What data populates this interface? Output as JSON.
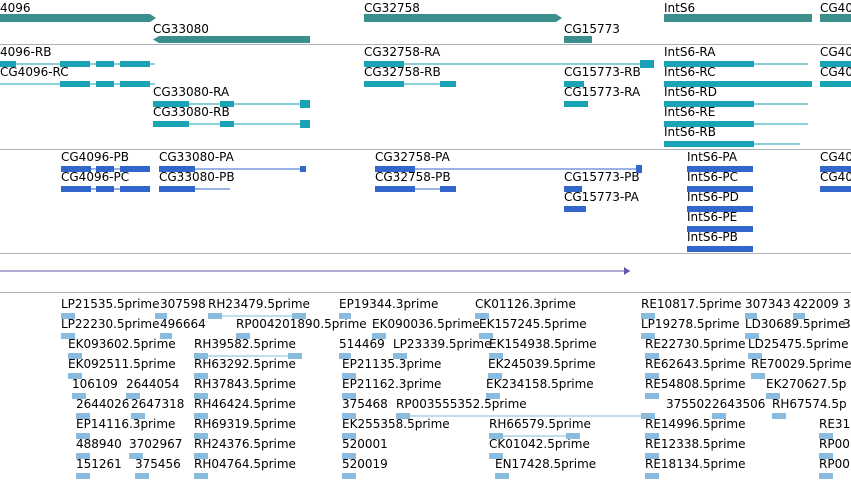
{
  "colors": {
    "gene": "#3a8f8c",
    "transcript": "#1aa3b5",
    "cds": "#3366cc",
    "sequence": "#6655aa",
    "est": "#88bbdd",
    "separator": "#aab3bb"
  },
  "genes": [
    "4096",
    "CG32758",
    "IntS6",
    "CG40",
    "CG33080",
    "CG15773"
  ],
  "transcripts": [
    "4096-RB",
    "CG32758-RA",
    "IntS6-RA",
    "CG40",
    "CG4096-RC",
    "CG32758-RB",
    "CG15773-RB",
    "IntS6-RC",
    "CG40",
    "CG33080-RA",
    "CG15773-RA",
    "IntS6-RD",
    "CG33080-RB",
    "IntS6-RE",
    "IntS6-RB"
  ],
  "proteins": [
    "CG4096-PB",
    "CG33080-PA",
    "CG32758-PA",
    "IntS6-PA",
    "CG40",
    "CG4096-PC",
    "CG33080-PB",
    "CG32758-PB",
    "CG15773-PB",
    "IntS6-PC",
    "CG40",
    "CG15773-PA",
    "IntS6-PD",
    "IntS6-PE",
    "IntS6-PB"
  ],
  "ests": [
    "LP21535.5prime",
    "307598",
    "RH23479.5prime",
    "EP19344.3prime",
    "CK01126.3prime",
    "RE10817.5prime",
    "307343",
    "422009",
    "3",
    "LP22230.5prime",
    "496664",
    "RP004201890.5prime",
    "EK090036.5prime",
    "EK157245.5prime",
    "LP19278.5prime",
    "LD30689.5prime",
    "3",
    "EK093602.5prime",
    "RH39582.5prime",
    "514469",
    "LP23339.5prime",
    "EK154938.5prime",
    "RE22730.5prime",
    "LD25475.5prime",
    "EK092511.5prime",
    "RH63292.5prime",
    "EP21135.3prime",
    "EK245039.5prime",
    "RE62643.5prime",
    "RE70029.5prime",
    "106109",
    "2644054",
    "RH37843.5prime",
    "EP21162.3prime",
    "EK234158.5prime",
    "RE54808.5prime",
    "EK270627.5p",
    "2644026",
    "2647318",
    "RH46424.5prime",
    "375468",
    "RP003555352.5prime",
    "375502",
    "2643506",
    "RH67574.5p",
    "EP14116.3prime",
    "RH69319.5prime",
    "EK255358.5prime",
    "RH66579.5prime",
    "RE14996.5prime",
    "RE31",
    "488940",
    "3702967",
    "RH24376.5prime",
    "520001",
    "CK01042.5prime",
    "RE12338.5prime",
    "RP00",
    "151261",
    "375456",
    "RH04764.5prime",
    "520019",
    "EN17428.5prime",
    "RE18134.5prime",
    "RP00"
  ]
}
